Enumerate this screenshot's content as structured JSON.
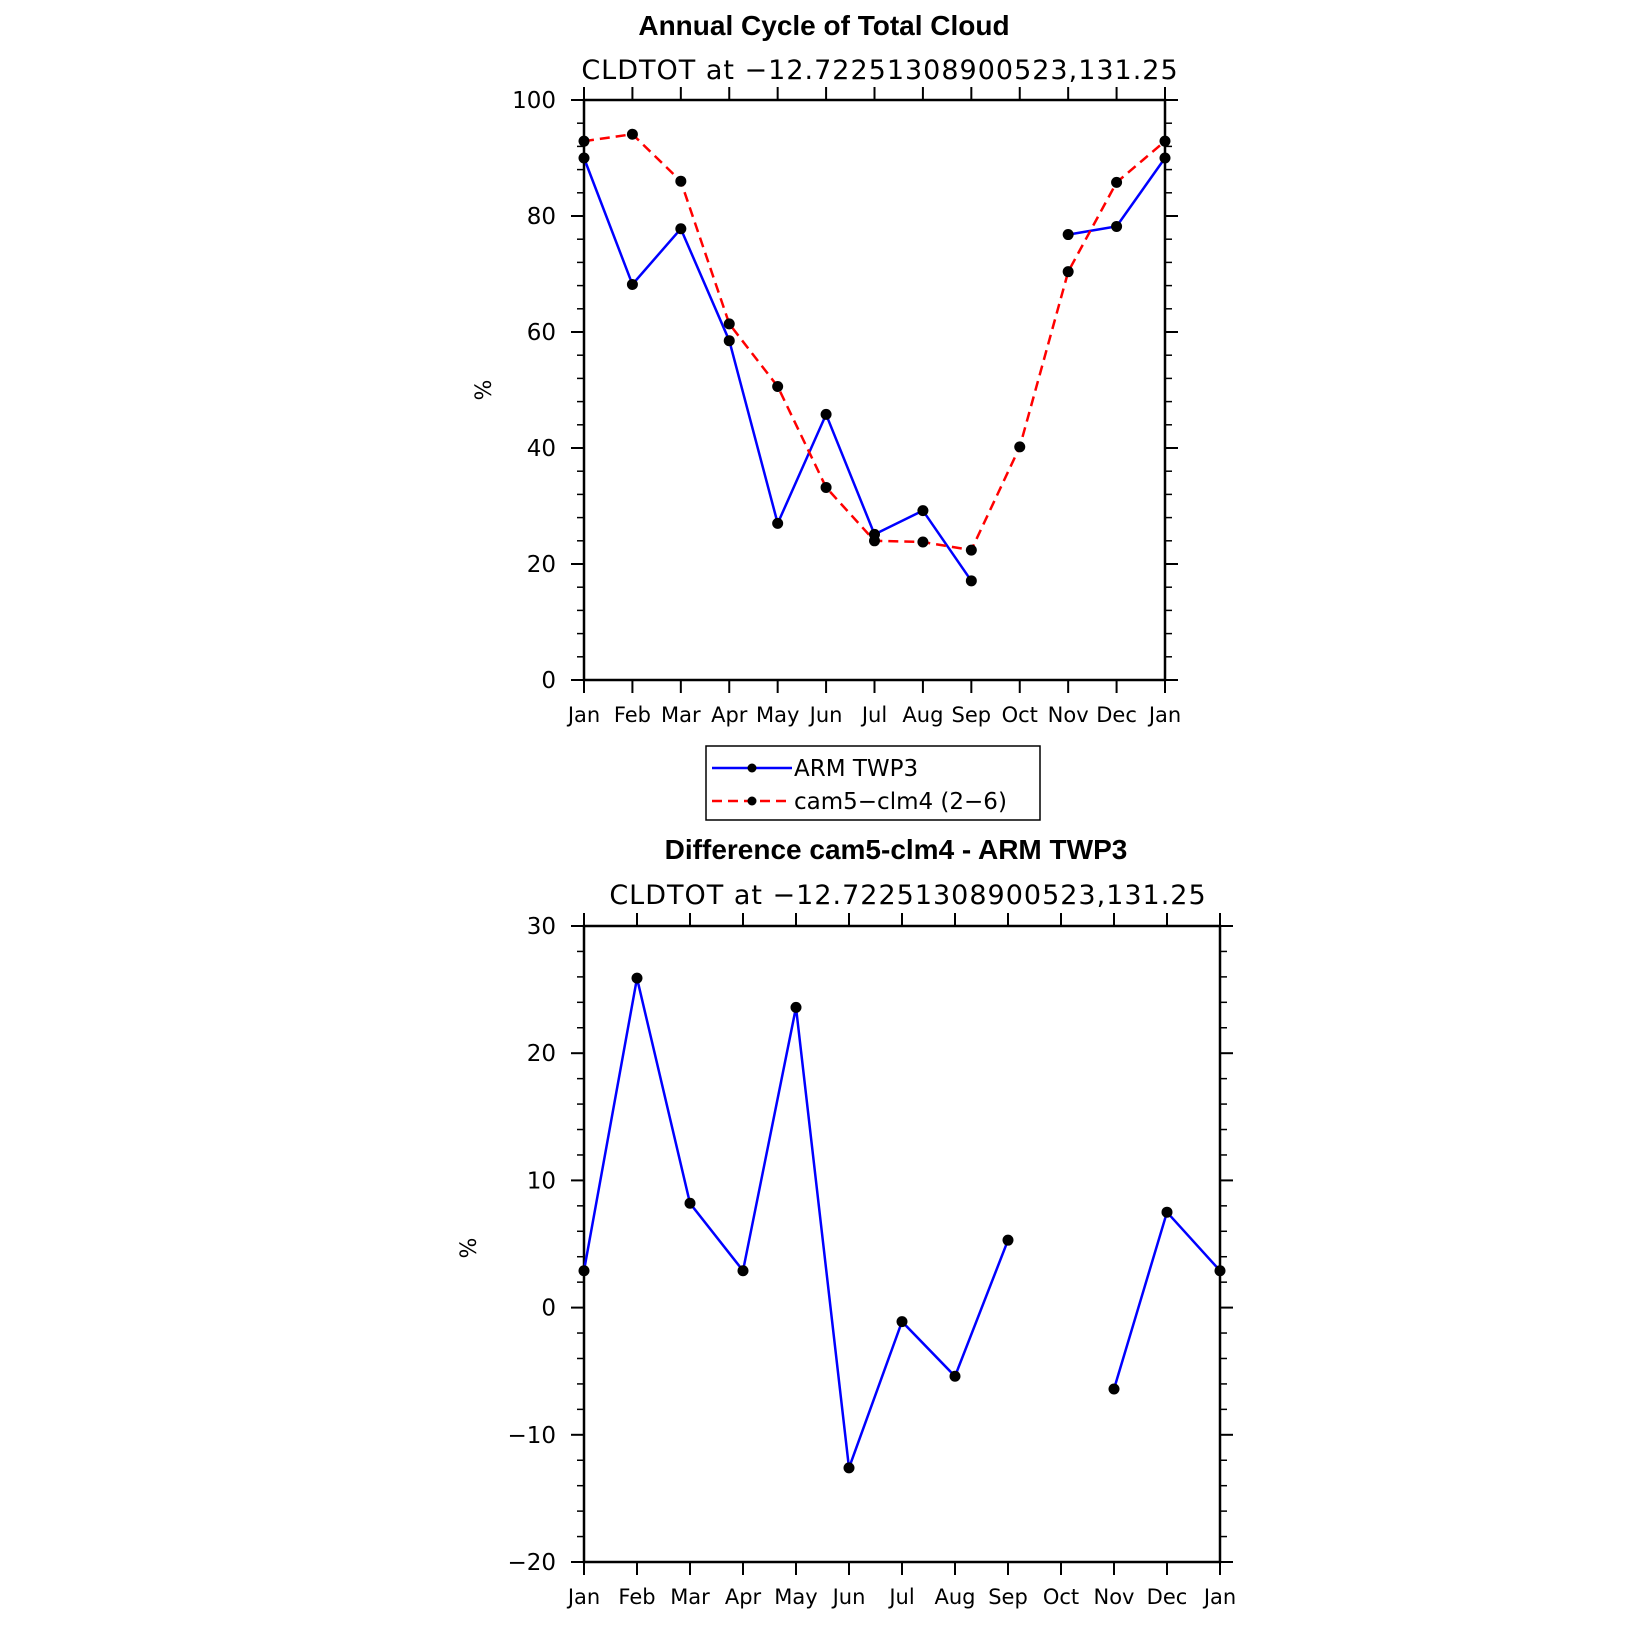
{
  "chart_data": [
    {
      "type": "line",
      "title": "Annual Cycle of Total Cloud",
      "subtitle": "CLDTOT at −12.72251308900523,131.25",
      "ylabel": "%",
      "ylim": [
        0,
        100
      ],
      "yticks": [
        "0",
        "20",
        "40",
        "60",
        "80",
        "100"
      ],
      "categories": [
        "Jan",
        "Feb",
        "Mar",
        "Apr",
        "May",
        "Jun",
        "Jul",
        "Aug",
        "Sep",
        "Oct",
        "Nov",
        "Dec",
        "Jan"
      ],
      "grid": false,
      "series": [
        {
          "name": "ARM TWP3",
          "color": "#0000ff",
          "dash": "solid",
          "values": [
            90.0,
            68.2,
            77.8,
            58.5,
            27.0,
            45.8,
            25.1,
            29.2,
            17.1,
            null,
            76.8,
            78.2,
            90.0
          ]
        },
        {
          "name": "cam5−clm4 (2−6)",
          "color": "#ff0000",
          "dash": "dashed",
          "values": [
            92.9,
            94.1,
            86.0,
            61.4,
            50.6,
            33.2,
            24.0,
            23.8,
            22.4,
            40.2,
            70.4,
            85.8,
            92.9
          ]
        }
      ],
      "legend": {
        "placement": "below"
      }
    },
    {
      "type": "line",
      "title": "Difference cam5-clm4 - ARM TWP3",
      "subtitle": "CLDTOT at −12.72251308900523,131.25",
      "ylabel": "%",
      "ylim": [
        -20,
        30
      ],
      "yticks": [
        "−20",
        "−10",
        "0",
        "10",
        "20",
        "30"
      ],
      "categories": [
        "Jan",
        "Feb",
        "Mar",
        "Apr",
        "May",
        "Jun",
        "Jul",
        "Aug",
        "Sep",
        "Oct",
        "Nov",
        "Dec",
        "Jan"
      ],
      "grid": false,
      "series": [
        {
          "color": "#0000ff",
          "dash": "solid",
          "values": [
            2.9,
            25.9,
            8.2,
            2.9,
            23.6,
            -12.6,
            -1.1,
            -5.4,
            5.3,
            null,
            -6.4,
            7.5,
            2.9
          ]
        }
      ]
    }
  ]
}
